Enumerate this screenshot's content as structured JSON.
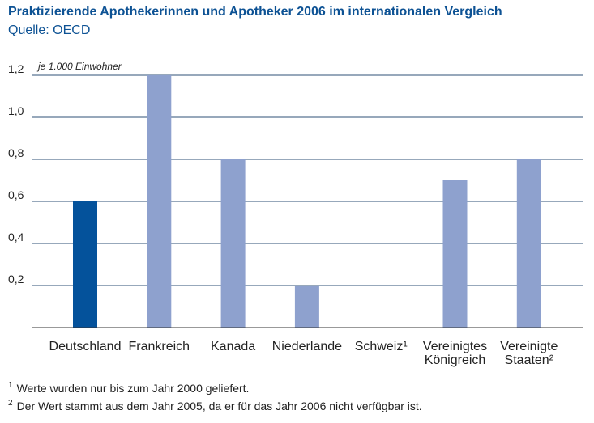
{
  "title": "Praktizierende Apothekerinnen und Apotheker 2006 im internationalen Vergleich",
  "subtitle": "Quelle: OECD",
  "colors": {
    "title": "#0d5294",
    "highlight_bar": "#04529b",
    "bar": "#8ea1ce",
    "grid": "#2f5077",
    "axis": "#333333",
    "text": "#222222"
  },
  "chart_data": {
    "type": "bar",
    "unit_label": "je 1.000 Einwohner",
    "ylim": [
      0,
      1.2
    ],
    "yticks": [
      {
        "value": 0.2,
        "label": "0,2"
      },
      {
        "value": 0.4,
        "label": "0,4"
      },
      {
        "value": 0.6,
        "label": "0,6"
      },
      {
        "value": 0.8,
        "label": "0,8"
      },
      {
        "value": 1.0,
        "label": "1,0"
      },
      {
        "value": 1.2,
        "label": "1,2"
      }
    ],
    "grid": true,
    "categories": [
      {
        "lines": [
          "Deutschland"
        ],
        "value": 0.6,
        "highlight": true
      },
      {
        "lines": [
          "Frankreich"
        ],
        "value": 1.2,
        "highlight": false
      },
      {
        "lines": [
          "Kanada"
        ],
        "value": 0.8,
        "highlight": false
      },
      {
        "lines": [
          "Niederlande"
        ],
        "value": 0.2,
        "highlight": false
      },
      {
        "lines": [
          "Schweiz¹"
        ],
        "value": null,
        "highlight": false
      },
      {
        "lines": [
          "Vereinigtes",
          "Königreich"
        ],
        "value": 0.7,
        "highlight": false
      },
      {
        "lines": [
          "Vereinigte",
          "Staaten²"
        ],
        "value": 0.8,
        "highlight": false
      }
    ]
  },
  "footnotes": [
    {
      "mark": "1",
      "text": "Werte wurden nur bis zum Jahr 2000 geliefert."
    },
    {
      "mark": "2",
      "text": "Der Wert stammt aus dem Jahr 2005, da er für das Jahr 2006 nicht verfügbar ist."
    }
  ]
}
